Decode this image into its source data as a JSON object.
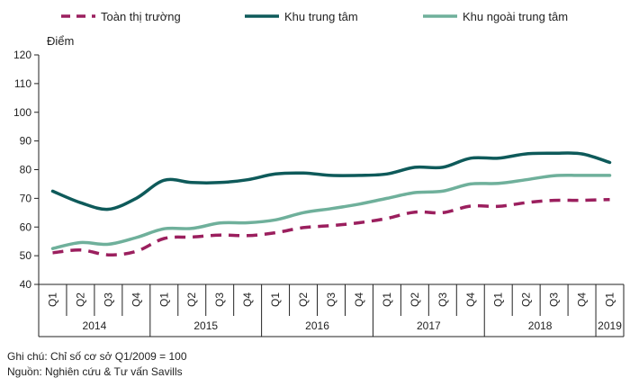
{
  "chart_data": {
    "type": "line",
    "ylabel": "Điểm",
    "ylim": [
      40,
      120
    ],
    "yticks": [
      40,
      50,
      60,
      70,
      80,
      90,
      100,
      110,
      120
    ],
    "legend_position": "top",
    "grid": false,
    "quarters": [
      "Q1",
      "Q2",
      "Q3",
      "Q4",
      "Q1",
      "Q2",
      "Q3",
      "Q4",
      "Q1",
      "Q2",
      "Q3",
      "Q4",
      "Q1",
      "Q2",
      "Q3",
      "Q4",
      "Q1",
      "Q2",
      "Q3",
      "Q4",
      "Q1"
    ],
    "years": [
      {
        "label": "2014",
        "span": 4
      },
      {
        "label": "2015",
        "span": 4
      },
      {
        "label": "2016",
        "span": 4
      },
      {
        "label": "2017",
        "span": 4
      },
      {
        "label": "2018",
        "span": 4
      },
      {
        "label": "2019",
        "span": 1
      }
    ],
    "series": [
      {
        "name": "Toàn thị trường",
        "color": "#9b1f5e",
        "dashed": true,
        "values": [
          51,
          52,
          50.3,
          51.5,
          56,
          56.5,
          57.2,
          57,
          58,
          59.8,
          60.5,
          61.5,
          63,
          65.2,
          65,
          67.3,
          67.2,
          68.5,
          69.3,
          69.3,
          69.6
        ]
      },
      {
        "name": "Khu trung tâm",
        "color": "#0e5a5a",
        "dashed": false,
        "values": [
          72.5,
          68.5,
          66.2,
          70,
          76.3,
          75.5,
          75.5,
          76.5,
          78.5,
          78.8,
          78,
          78,
          78.5,
          80.8,
          80.8,
          84,
          84,
          85.5,
          85.7,
          85.5,
          82.5
        ]
      },
      {
        "name": "Khu ngoài trung tâm",
        "color": "#6fb09b",
        "dashed": false,
        "values": [
          52.5,
          54.6,
          54,
          56.3,
          59.4,
          59.5,
          61.4,
          61.5,
          62.5,
          65,
          66.4,
          68,
          70,
          72,
          72.5,
          75,
          75.2,
          76.5,
          77.9,
          78,
          78
        ]
      }
    ]
  },
  "notes": {
    "line1": "Ghi chú: Chỉ số cơ sở Q1/2009 = 100",
    "line2": "Nguồn: Nghiên cứu & Tư vấn Savills"
  }
}
